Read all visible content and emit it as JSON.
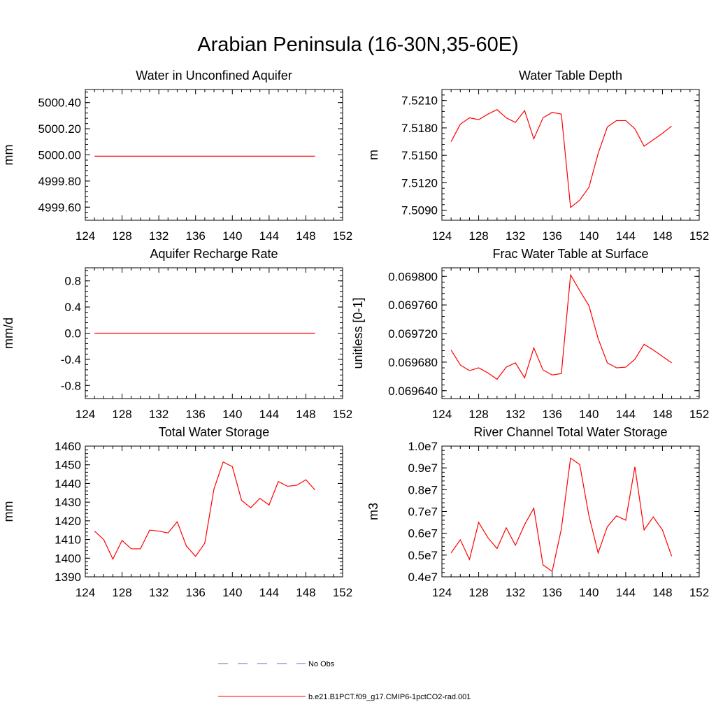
{
  "title": "Arabian Peninsula (16-30N,35-60E)",
  "colors": {
    "model": "#ff0000",
    "obs": "#6a6aaa",
    "axis": "#000000"
  },
  "legend": {
    "obs_label": "No Obs",
    "model_label": "b.e21.B1PCT.f09_g17.CMIP6-1pctCO2-rad.001"
  },
  "chart_data": [
    {
      "id": "water-in-unconfined-aquifer",
      "type": "line",
      "title": "Water in Unconfined Aquifer",
      "xlabel": "",
      "ylabel": "mm",
      "xlim": [
        124,
        152
      ],
      "ylim": [
        4999.5,
        5000.5
      ],
      "xticks": [
        "124",
        "128",
        "132",
        "136",
        "140",
        "144",
        "148",
        "152"
      ],
      "yticks": [
        {
          "v": 4999.6,
          "label": "4999.60"
        },
        {
          "v": 4999.8,
          "label": "4999.80"
        },
        {
          "v": 5000.0,
          "label": "5000.00"
        },
        {
          "v": 5000.2,
          "label": "5000.20"
        },
        {
          "v": 5000.4,
          "label": "5000.40"
        }
      ],
      "x": [
        125,
        126,
        127,
        128,
        129,
        130,
        131,
        132,
        133,
        134,
        135,
        136,
        137,
        138,
        139,
        140,
        141,
        142,
        143,
        144,
        145,
        146,
        147,
        148,
        149
      ],
      "series": [
        {
          "values": [
            4999.99,
            4999.99,
            4999.99,
            4999.99,
            4999.99,
            4999.99,
            4999.99,
            4999.99,
            4999.99,
            4999.99,
            4999.99,
            4999.99,
            4999.99,
            4999.99,
            4999.99,
            4999.99,
            4999.99,
            4999.99,
            4999.99,
            4999.99,
            4999.99,
            4999.99,
            4999.99,
            4999.99,
            4999.99
          ]
        }
      ]
    },
    {
      "id": "water-table-depth",
      "type": "line",
      "title": "Water Table Depth",
      "xlabel": "",
      "ylabel": "m",
      "xlim": [
        124,
        152
      ],
      "ylim": [
        7.5079,
        7.5222
      ],
      "xticks": [
        "124",
        "128",
        "132",
        "136",
        "140",
        "144",
        "148",
        "152"
      ],
      "yticks": [
        {
          "v": 7.509,
          "label": "7.5090"
        },
        {
          "v": 7.512,
          "label": "7.5120"
        },
        {
          "v": 7.515,
          "label": "7.5150"
        },
        {
          "v": 7.518,
          "label": "7.5180"
        },
        {
          "v": 7.521,
          "label": "7.5210"
        }
      ],
      "x": [
        125,
        126,
        127,
        128,
        129,
        130,
        131,
        132,
        133,
        134,
        135,
        136,
        137,
        138,
        139,
        140,
        141,
        142,
        143,
        144,
        145,
        146,
        147,
        148,
        149
      ],
      "series": [
        {
          "values": [
            7.5165,
            7.5184,
            7.5191,
            7.5189,
            7.5195,
            7.52,
            7.5191,
            7.5186,
            7.5199,
            7.5168,
            7.5191,
            7.5197,
            7.5195,
            7.5093,
            7.5101,
            7.5115,
            7.5152,
            7.5181,
            7.5188,
            7.5188,
            7.5179,
            7.516,
            7.5167,
            7.5174,
            7.5182
          ]
        }
      ]
    },
    {
      "id": "aquifer-recharge-rate",
      "type": "line",
      "title": "Aquifer Recharge Rate",
      "xlabel": "",
      "ylabel": "mm/d",
      "xlim": [
        124,
        152
      ],
      "ylim": [
        -1.0,
        1.0
      ],
      "xticks": [
        "124",
        "128",
        "132",
        "136",
        "140",
        "144",
        "148",
        "152"
      ],
      "yticks": [
        {
          "v": -0.8,
          "label": "-0.8"
        },
        {
          "v": -0.4,
          "label": "-0.4"
        },
        {
          "v": 0.0,
          "label": "0.0"
        },
        {
          "v": 0.4,
          "label": "0.4"
        },
        {
          "v": 0.8,
          "label": "0.8"
        }
      ],
      "x": [
        125,
        126,
        127,
        128,
        129,
        130,
        131,
        132,
        133,
        134,
        135,
        136,
        137,
        138,
        139,
        140,
        141,
        142,
        143,
        144,
        145,
        146,
        147,
        148,
        149
      ],
      "series": [
        {
          "values": [
            0,
            0,
            0,
            0,
            0,
            0,
            0,
            0,
            0,
            0,
            0,
            0,
            0,
            0,
            0,
            0,
            0,
            0,
            0,
            0,
            0,
            0,
            0,
            0,
            0
          ]
        }
      ]
    },
    {
      "id": "frac-water-table-at-surface",
      "type": "line",
      "title": "Frac Water Table at Surface",
      "xlabel": "",
      "ylabel": "unitless [0-1]",
      "xlim": [
        124,
        152
      ],
      "ylim": [
        0.069629,
        0.069812
      ],
      "xticks": [
        "124",
        "128",
        "132",
        "136",
        "140",
        "144",
        "148",
        "152"
      ],
      "yticks": [
        {
          "v": 0.06964,
          "label": "0.069640"
        },
        {
          "v": 0.06968,
          "label": "0.069680"
        },
        {
          "v": 0.06972,
          "label": "0.069720"
        },
        {
          "v": 0.06976,
          "label": "0.069760"
        },
        {
          "v": 0.0698,
          "label": "0.069800"
        }
      ],
      "x": [
        125,
        126,
        127,
        128,
        129,
        130,
        131,
        132,
        133,
        134,
        135,
        136,
        137,
        138,
        139,
        140,
        141,
        142,
        143,
        144,
        145,
        146,
        147,
        148,
        149
      ],
      "series": [
        {
          "values": [
            0.069697,
            0.069676,
            0.069668,
            0.069672,
            0.069665,
            0.069656,
            0.069673,
            0.069679,
            0.069658,
            0.0697,
            0.069669,
            0.069662,
            0.069664,
            0.069802,
            0.06978,
            0.069759,
            0.069713,
            0.069679,
            0.069672,
            0.069673,
            0.069684,
            0.069705,
            0.069697,
            0.069688,
            0.069679
          ]
        }
      ]
    },
    {
      "id": "total-water-storage",
      "type": "line",
      "title": "Total Water Storage",
      "xlabel": "",
      "ylabel": "mm",
      "xlim": [
        124,
        152
      ],
      "ylim": [
        1390,
        1460
      ],
      "xticks": [
        "124",
        "128",
        "132",
        "136",
        "140",
        "144",
        "148",
        "152"
      ],
      "yticks": [
        {
          "v": 1390,
          "label": "1390"
        },
        {
          "v": 1400,
          "label": "1400"
        },
        {
          "v": 1410,
          "label": "1410"
        },
        {
          "v": 1420,
          "label": "1420"
        },
        {
          "v": 1430,
          "label": "1430"
        },
        {
          "v": 1440,
          "label": "1440"
        },
        {
          "v": 1450,
          "label": "1450"
        },
        {
          "v": 1460,
          "label": "1460"
        }
      ],
      "x": [
        125,
        126,
        127,
        128,
        129,
        130,
        131,
        132,
        133,
        134,
        135,
        136,
        137,
        138,
        139,
        140,
        141,
        142,
        143,
        144,
        145,
        146,
        147,
        148,
        149
      ],
      "series": [
        {
          "values": [
            1414.5,
            1410.0,
            1399.5,
            1409.5,
            1405.0,
            1405.0,
            1415.0,
            1414.5,
            1413.5,
            1419.5,
            1406.5,
            1401.0,
            1408.0,
            1437.0,
            1451.5,
            1449.0,
            1431.0,
            1427.0,
            1432.0,
            1428.5,
            1441.0,
            1438.5,
            1439.0,
            1442.0,
            1436.5
          ]
        }
      ]
    },
    {
      "id": "river-channel-total-water-storage",
      "type": "line",
      "title": "River Channel Total Water Storage",
      "xlabel": "",
      "ylabel": "m3",
      "xlim": [
        124,
        152
      ],
      "ylim": [
        4000000,
        10000000
      ],
      "xticks": [
        "124",
        "128",
        "132",
        "136",
        "140",
        "144",
        "148",
        "152"
      ],
      "yticks": [
        {
          "v": 4000000,
          "label": "0.4e7"
        },
        {
          "v": 5000000,
          "label": "0.5e7"
        },
        {
          "v": 6000000,
          "label": "0.6e7"
        },
        {
          "v": 7000000,
          "label": "0.7e7"
        },
        {
          "v": 8000000,
          "label": "0.8e7"
        },
        {
          "v": 9000000,
          "label": "0.9e7"
        },
        {
          "v": 10000000,
          "label": "1.0e7"
        }
      ],
      "x": [
        125,
        126,
        127,
        128,
        129,
        130,
        131,
        132,
        133,
        134,
        135,
        136,
        137,
        138,
        139,
        140,
        141,
        142,
        143,
        144,
        145,
        146,
        147,
        148,
        149
      ],
      "series": [
        {
          "values": [
            5100000,
            5700000,
            4800000,
            6500000,
            5800000,
            5300000,
            6250000,
            5450000,
            6400000,
            7150000,
            4550000,
            4250000,
            6200000,
            9450000,
            9150000,
            6800000,
            5100000,
            6300000,
            6800000,
            6600000,
            9050000,
            6150000,
            6750000,
            6150000,
            4950000
          ]
        }
      ]
    }
  ]
}
